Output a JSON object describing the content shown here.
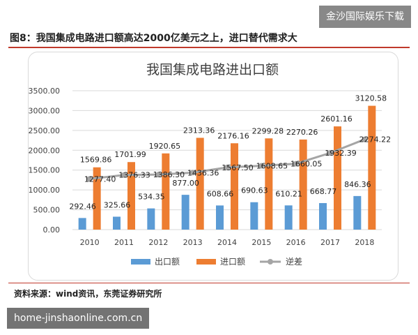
{
  "watermark_top": "金沙国际娱乐下载",
  "figure_title": "图8：我国集成电路进口额高达2000亿美元之上，进口替代需求大",
  "source": "资料来源：wind资讯，东莞证券研究所",
  "watermark_bottom": "home-jinshaonline.com.cn",
  "colors": {
    "export": "#5b9bd5",
    "import": "#ed7d31",
    "deficit": "#a5a5a5"
  },
  "chart_data": {
    "type": "bar",
    "title": "我国集成电路进出口额",
    "categories": [
      "2010",
      "2011",
      "2012",
      "2013",
      "2014",
      "2015",
      "2016",
      "2017",
      "2018"
    ],
    "ylim": [
      0,
      3500
    ],
    "yticks": [
      "0.00",
      "500.00",
      "1000.00",
      "1500.00",
      "2000.00",
      "2500.00",
      "3000.00",
      "3500.00"
    ],
    "grid": true,
    "legend_position": "bottom",
    "series": [
      {
        "name": "出口额",
        "kind": "bar",
        "values": [
          292.46,
          325.66,
          534.35,
          877.0,
          608.66,
          690.63,
          610.21,
          668.77,
          846.36
        ],
        "labels": [
          "292.46",
          "325.66",
          "534.35",
          "877.00",
          "608.66",
          "690.63",
          "610.21",
          "668.77",
          "846.36"
        ]
      },
      {
        "name": "进口额",
        "kind": "bar",
        "values": [
          1569.86,
          1701.99,
          1920.65,
          2313.36,
          2176.16,
          2299.28,
          2270.26,
          2601.16,
          3120.58
        ],
        "labels": [
          "1569.86",
          "1701.99",
          "1920.65",
          "2313.36",
          "2176.16",
          "2299.28",
          "2270.26",
          "2601.16",
          "3120.58"
        ]
      },
      {
        "name": "逆差",
        "kind": "line",
        "values": [
          1277.4,
          1376.33,
          1386.3,
          1436.36,
          1567.5,
          1608.65,
          1660.05,
          1932.39,
          2274.22
        ],
        "labels": [
          "1277.40",
          "1376.33",
          "1386.30",
          "1436.36",
          "1567.50",
          "1608.65",
          "1660.05",
          "1932.39",
          "2274.22"
        ]
      }
    ]
  }
}
